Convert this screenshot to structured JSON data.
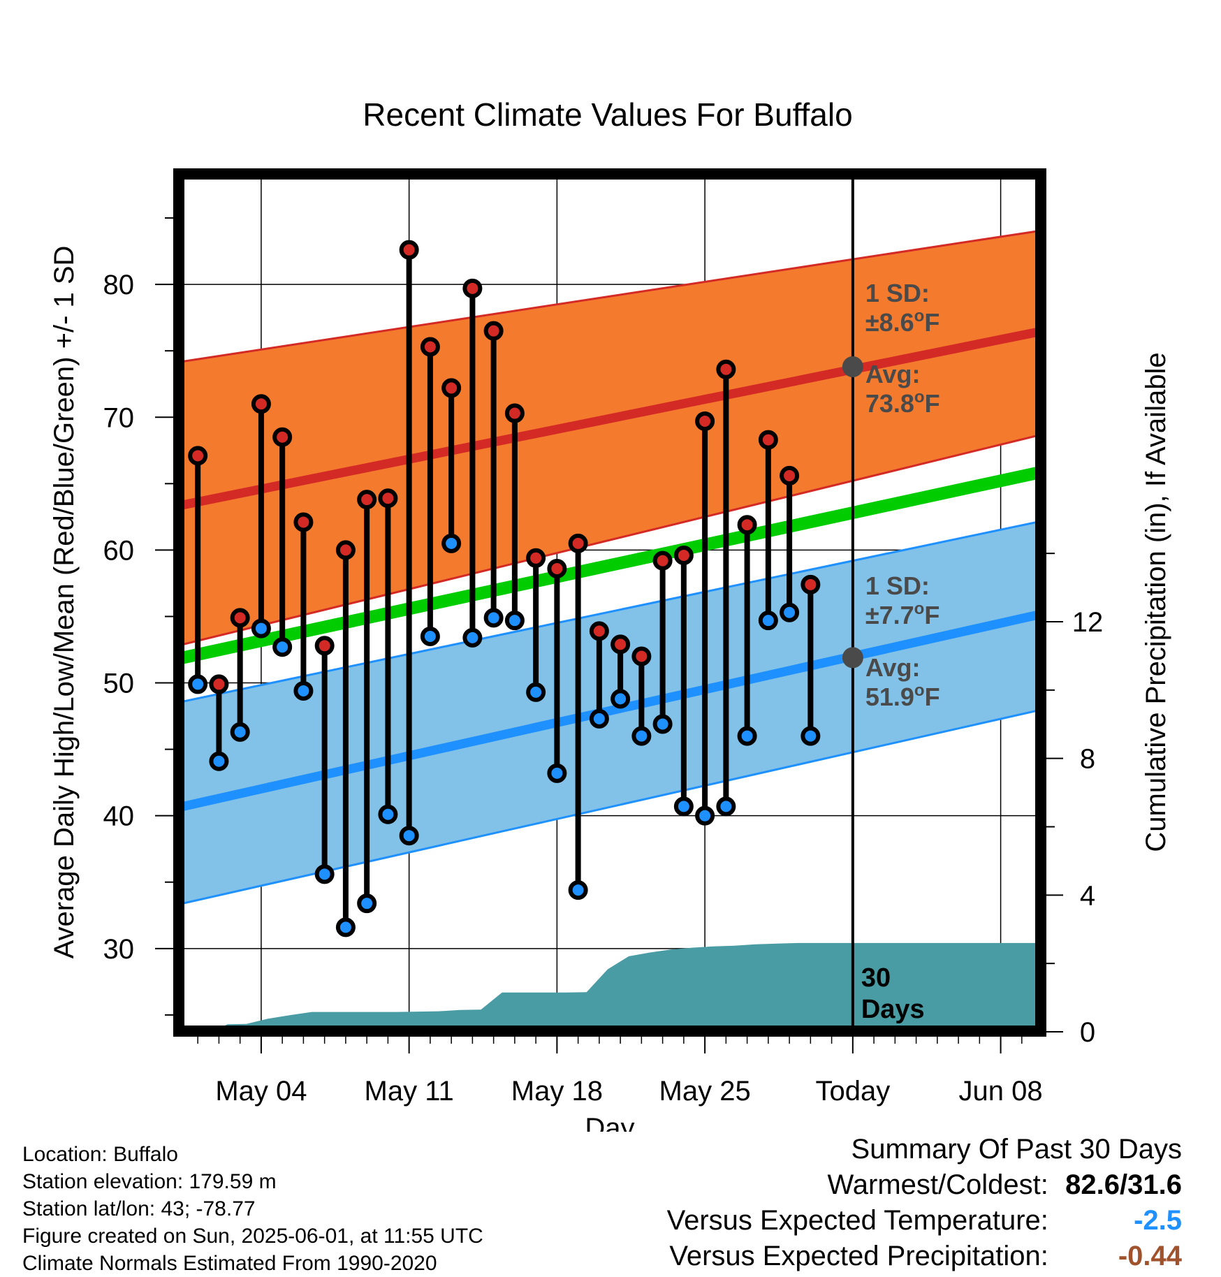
{
  "chart_data": {
    "type": "dumbbell",
    "title": "Recent Climate Values For Buffalo",
    "xlabel": "Day",
    "ylabel": "Average Daily High/Low/Mean (Red/Blue/Green) +/- 1 SD",
    "y2label": "Cumulative Precipitation (in), If Available",
    "x_tick_labels": [
      "May 04",
      "May 11",
      "May 18",
      "May 25",
      "Today",
      "Jun 08"
    ],
    "x_tick_days": [
      3,
      10,
      17,
      24,
      31,
      38
    ],
    "xlim": [
      -0.7,
      39.7
    ],
    "ylim": [
      24.1,
      88
    ],
    "y_ticks": [
      30,
      40,
      50,
      60,
      70,
      80
    ],
    "y2lim": [
      0,
      12
    ],
    "y2_ticks": [
      0,
      4,
      8,
      12
    ],
    "today_day": 31,
    "observations": [
      {
        "day": 0,
        "high": 67.1,
        "low": 49.9
      },
      {
        "day": 1,
        "high": 49.9,
        "low": 44.1
      },
      {
        "day": 2,
        "high": 54.9,
        "low": 46.3
      },
      {
        "day": 3,
        "high": 71.0,
        "low": 54.1
      },
      {
        "day": 4,
        "high": 68.5,
        "low": 52.7
      },
      {
        "day": 5,
        "high": 62.1,
        "low": 49.4
      },
      {
        "day": 6,
        "high": 52.8,
        "low": 35.6
      },
      {
        "day": 7,
        "high": 60.0,
        "low": 31.6
      },
      {
        "day": 8,
        "high": 63.8,
        "low": 33.4
      },
      {
        "day": 9,
        "high": 63.9,
        "low": 40.1
      },
      {
        "day": 10,
        "high": 82.6,
        "low": 38.5
      },
      {
        "day": 11,
        "high": 75.3,
        "low": 53.5
      },
      {
        "day": 12,
        "high": 72.2,
        "low": 60.5
      },
      {
        "day": 13,
        "high": 79.7,
        "low": 53.4
      },
      {
        "day": 14,
        "high": 76.5,
        "low": 54.9
      },
      {
        "day": 15,
        "high": 70.3,
        "low": 54.7
      },
      {
        "day": 16,
        "high": 59.4,
        "low": 49.3
      },
      {
        "day": 17,
        "high": 58.6,
        "low": 43.2
      },
      {
        "day": 18,
        "high": 60.5,
        "low": 34.4
      },
      {
        "day": 19,
        "high": 53.9,
        "low": 47.3
      },
      {
        "day": 20,
        "high": 52.9,
        "low": 48.8
      },
      {
        "day": 21,
        "high": 52.0,
        "low": 46.0
      },
      {
        "day": 22,
        "high": 59.2,
        "low": 46.9
      },
      {
        "day": 23,
        "high": 59.6,
        "low": 40.7
      },
      {
        "day": 24,
        "high": 69.7,
        "low": 40.0
      },
      {
        "day": 25,
        "high": 73.6,
        "low": 40.7
      },
      {
        "day": 26,
        "high": 61.9,
        "low": 46.0
      },
      {
        "day": 27,
        "high": 68.3,
        "low": 54.7
      },
      {
        "day": 28,
        "high": 65.6,
        "low": 55.3
      },
      {
        "day": 29,
        "high": 57.4,
        "low": 46.0
      }
    ],
    "normals": {
      "days": [
        -0.7,
        39.7
      ],
      "high_avg": [
        63.4,
        76.4
      ],
      "high_sd_upper": [
        74.2,
        84.0
      ],
      "high_sd_lower": [
        52.9,
        68.6
      ],
      "mean_avg": [
        51.9,
        65.8
      ],
      "low_avg": [
        40.7,
        55.1
      ],
      "low_sd_upper": [
        48.6,
        62.1
      ],
      "low_sd_lower": [
        33.4,
        47.9
      ]
    },
    "precipitation": {
      "days": [
        -0.7,
        0.7,
        1.4,
        2.3,
        3.3,
        4.4,
        5.4,
        6.4,
        7.4,
        8.4,
        9.4,
        10.4,
        11.4,
        12.4,
        13.4,
        14.4,
        15.4,
        16.4,
        17.4,
        18.4,
        19.4,
        20.4,
        21.4,
        22.4,
        23.4,
        24.4,
        25.4,
        26.4,
        27.4,
        28.4,
        29.4,
        30.4,
        31.4,
        39.7
      ],
      "values": [
        0,
        0,
        0.22,
        0.23,
        0.38,
        0.49,
        0.58,
        0.58,
        0.58,
        0.58,
        0.58,
        0.59,
        0.6,
        0.64,
        0.65,
        1.15,
        1.15,
        1.15,
        1.15,
        1.16,
        1.83,
        2.21,
        2.32,
        2.41,
        2.46,
        2.5,
        2.52,
        2.56,
        2.58,
        2.6,
        2.6,
        2.6,
        2.6,
        2.6
      ]
    },
    "annotations": {
      "high_sd_label": "1 SD:",
      "high_sd_value": "±8.6",
      "high_avg_label": "Avg:",
      "high_avg_value": "73.8",
      "high_today": 73.8,
      "low_sd_label": "1 SD:",
      "low_sd_value": "±7.7",
      "low_avg_label": "Avg:",
      "low_avg_value": "51.9",
      "low_today": 51.9,
      "degree_unit": "F",
      "degree_sign": "o",
      "days_count": "30",
      "days_word": "Days"
    },
    "colors": {
      "high_band": "#f47a2e",
      "high_line": "#d42a26",
      "low_band": "#82c2e8",
      "low_line": "#1e90ff",
      "mean_line": "#00cc00",
      "precip": "#4a9ca4",
      "high_dot": "#d42a26",
      "low_dot": "#1e90ff",
      "annotation": "#4a4a4a",
      "summary_temp": "#1e90ff",
      "summary_precip": "#a0522d"
    }
  },
  "footer": {
    "location": "Location: Buffalo",
    "elevation": "Station elevation: 179.59 m",
    "latlon": "Station lat/lon: 43; -78.77",
    "created": "Figure created on Sun, 2025-06-01, at 11:55 UTC",
    "normals": "Climate Normals Estimated From 1990-2020"
  },
  "summary": {
    "title": "Summary Of Past 30 Days",
    "warmest_label": "Warmest/Coldest:",
    "warmest_value": "82.6/31.6",
    "temp_label": "Versus Expected Temperature:",
    "temp_value": "-2.5",
    "precip_label": "Versus Expected Precipitation:",
    "precip_value": "-0.44"
  }
}
